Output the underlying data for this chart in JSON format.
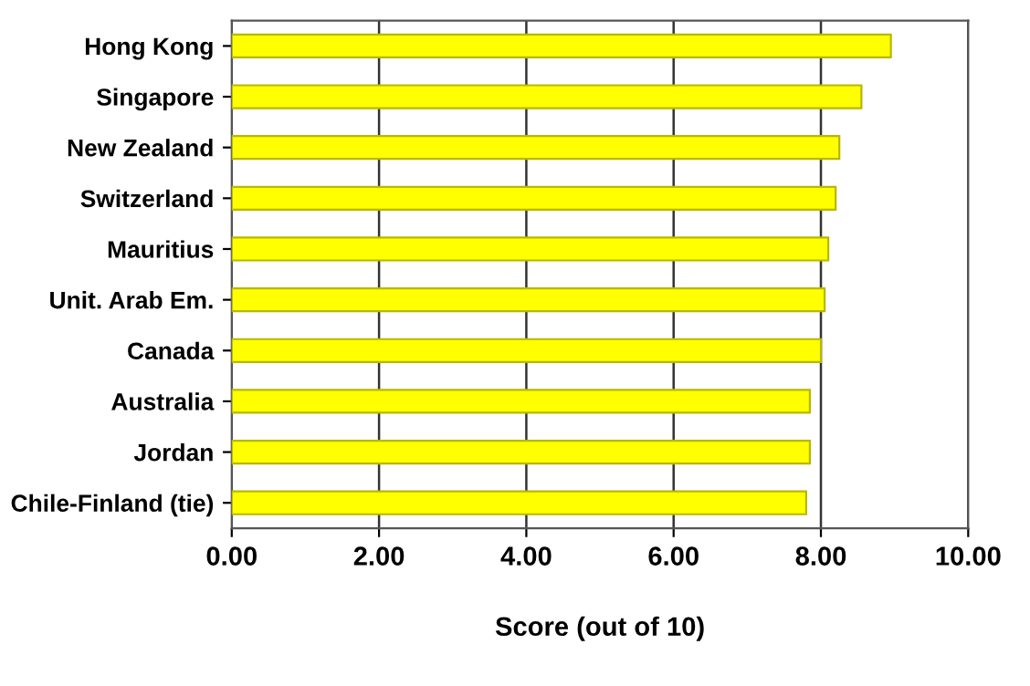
{
  "chart_data": {
    "type": "bar",
    "orientation": "horizontal",
    "xlabel": "Score (out of 10)",
    "categories": [
      "Hong Kong",
      "Singapore",
      "New Zealand",
      "Switzerland",
      "Mauritius",
      "Unit. Arab Em.",
      "Canada",
      "Australia",
      "Jordan",
      "Chile-Finland (tie)"
    ],
    "values": [
      8.95,
      8.55,
      8.25,
      8.2,
      8.1,
      8.05,
      8.0,
      7.85,
      7.85,
      7.8
    ],
    "color": "#ffff00",
    "xlim": [
      0,
      10
    ],
    "xticks": [
      {
        "value": 0,
        "label": "0.00"
      },
      {
        "value": 2,
        "label": "2.00"
      },
      {
        "value": 4,
        "label": "4.00"
      },
      {
        "value": 6,
        "label": "6.00"
      },
      {
        "value": 8,
        "label": "8.00"
      },
      {
        "value": 10,
        "label": "10.00"
      }
    ],
    "grid": "x"
  }
}
